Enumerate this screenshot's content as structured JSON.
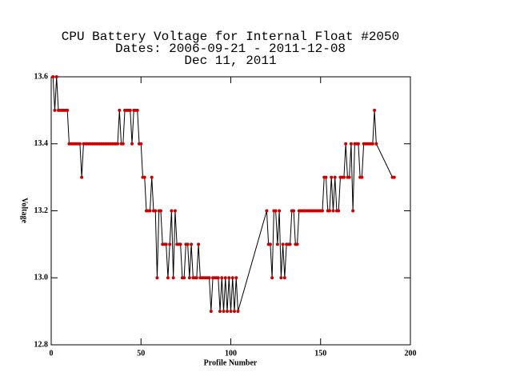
{
  "chart_data": {
    "type": "line",
    "title": "CPU Battery Voltage for Internal Float #2050",
    "subtitle": "Dates:  2006-09-21 -  2011-12-08",
    "date": "Dec 11, 2011",
    "x_label": "Profile Number",
    "y_label": "Voltage",
    "line_color": "#000000",
    "marker_color": "#cc0000",
    "xlim": [
      0,
      200
    ],
    "xticks": [
      0,
      50,
      100,
      150,
      200
    ],
    "ylim": [
      12.8,
      13.6
    ],
    "yticks": [
      {
        "value": 12.8,
        "label": "12.8"
      },
      {
        "value": 13,
        "label": "13.0"
      },
      13.2,
      13.4,
      13.6
    ],
    "x": [
      1,
      2,
      3,
      4,
      5,
      6,
      7,
      8,
      9,
      10,
      11,
      12,
      13,
      14,
      15,
      16,
      17,
      18,
      19,
      20,
      21,
      22,
      23,
      24,
      25,
      26,
      27,
      28,
      29,
      30,
      31,
      32,
      33,
      34,
      35,
      36,
      37,
      38,
      39,
      40,
      41,
      42,
      43,
      44,
      45,
      46,
      47,
      48,
      49,
      50,
      51,
      52,
      53,
      54,
      55,
      56,
      57,
      58,
      59,
      60,
      61,
      62,
      63,
      64,
      65,
      66,
      67,
      68,
      69,
      70,
      71,
      72,
      73,
      74,
      75,
      76,
      77,
      78,
      79,
      80,
      81,
      82,
      83,
      84,
      85,
      86,
      87,
      88,
      89,
      90,
      91,
      92,
      93,
      94,
      95,
      96,
      97,
      98,
      99,
      100,
      101,
      102,
      103,
      104,
      120,
      121,
      122,
      123,
      124,
      125,
      126,
      127,
      128,
      129,
      130,
      131,
      132,
      133,
      134,
      135,
      136,
      137,
      138,
      139,
      140,
      141,
      142,
      143,
      144,
      145,
      146,
      147,
      148,
      149,
      150,
      151,
      152,
      153,
      154,
      155,
      156,
      157,
      158,
      159,
      160,
      161,
      162,
      163,
      164,
      165,
      166,
      167,
      168,
      169,
      170,
      171,
      172,
      173,
      174,
      175,
      176,
      177,
      178,
      179,
      180,
      181,
      190,
      191
    ],
    "values": [
      13.6,
      13.5,
      13.6,
      13.5,
      13.5,
      13.5,
      13.5,
      13.5,
      13.5,
      13.4,
      13.4,
      13.4,
      13.4,
      13.4,
      13.4,
      13.4,
      13.3,
      13.4,
      13.4,
      13.4,
      13.4,
      13.4,
      13.4,
      13.4,
      13.4,
      13.4,
      13.4,
      13.4,
      13.4,
      13.4,
      13.4,
      13.4,
      13.4,
      13.4,
      13.4,
      13.4,
      13.4,
      13.5,
      13.4,
      13.4,
      13.5,
      13.5,
      13.5,
      13.5,
      13.4,
      13.5,
      13.5,
      13.5,
      13.4,
      13.4,
      13.3,
      13.3,
      13.2,
      13.2,
      13.2,
      13.3,
      13.2,
      13.2,
      13.0,
      13.2,
      13.2,
      13.1,
      13.1,
      13.1,
      13.0,
      13.1,
      13.2,
      13.0,
      13.2,
      13.1,
      13.1,
      13.1,
      13.0,
      13.0,
      13.1,
      13.1,
      13.0,
      13.1,
      13.0,
      13.0,
      13.0,
      13.1,
      13.0,
      13.0,
      13.0,
      13.0,
      13.0,
      13.0,
      12.9,
      13.0,
      13.0,
      13.0,
      13.0,
      12.9,
      13.0,
      12.9,
      13.0,
      12.9,
      13.0,
      12.9,
      13.0,
      12.9,
      13.0,
      12.9,
      13.2,
      13.1,
      13.1,
      13.0,
      13.2,
      13.2,
      13.1,
      13.2,
      13.0,
      13.1,
      13.0,
      13.1,
      13.1,
      13.1,
      13.2,
      13.2,
      13.1,
      13.1,
      13.2,
      13.2,
      13.2,
      13.2,
      13.2,
      13.2,
      13.2,
      13.2,
      13.2,
      13.2,
      13.2,
      13.2,
      13.2,
      13.2,
      13.3,
      13.3,
      13.2,
      13.2,
      13.3,
      13.2,
      13.3,
      13.2,
      13.2,
      13.3,
      13.3,
      13.3,
      13.4,
      13.3,
      13.3,
      13.4,
      13.2,
      13.4,
      13.4,
      13.4,
      13.3,
      13.3,
      13.4,
      13.4,
      13.4,
      13.4,
      13.4,
      13.4,
      13.5,
      13.4,
      13.3,
      13.3
    ]
  }
}
